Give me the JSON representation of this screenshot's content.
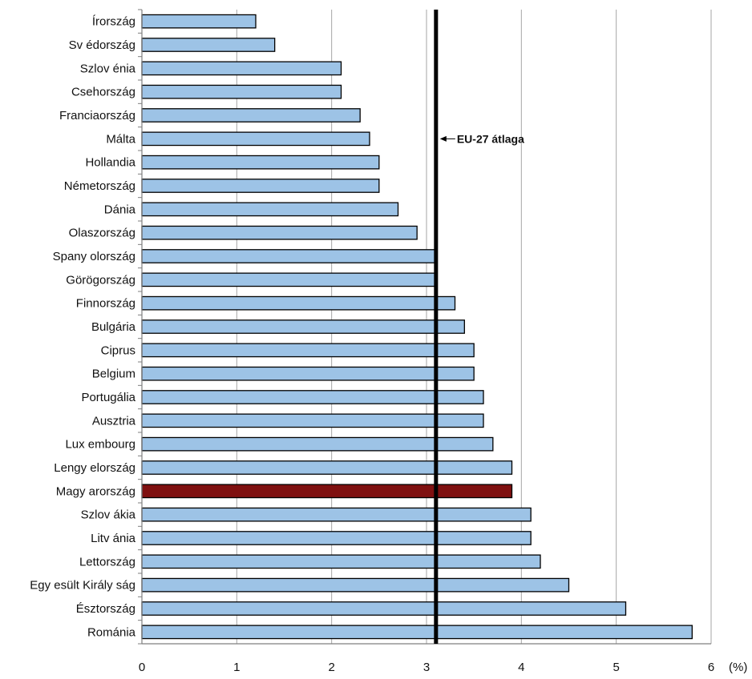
{
  "chart_data": {
    "type": "bar",
    "orientation": "horizontal",
    "categories": [
      "Írország",
      "Sv édország",
      "Szlov énia",
      "Csehország",
      "Franciaország",
      "Málta",
      "Hollandia",
      "Németország",
      "Dánia",
      "Olaszország",
      "Spany olország",
      "Görögország",
      "Finnország",
      "Bulgária",
      "Ciprus",
      "Belgium",
      "Portugália",
      "Ausztria",
      "Lux embourg",
      "Lengy elország",
      "Magy arország",
      "Szlov ákia",
      "Litv ánia",
      "Lettország",
      "Egy esült Király ság",
      "Észtország",
      "Románia"
    ],
    "values": [
      1.2,
      1.4,
      2.1,
      2.1,
      2.3,
      2.4,
      2.5,
      2.5,
      2.7,
      2.9,
      3.1,
      3.1,
      3.3,
      3.4,
      3.5,
      3.5,
      3.6,
      3.6,
      3.7,
      3.9,
      3.9,
      4.1,
      4.1,
      4.2,
      4.5,
      5.1,
      5.8
    ],
    "highlight_category": "Magy arország",
    "xlim": [
      0,
      6
    ],
    "xticks": [
      "0",
      "1",
      "2",
      "3",
      "4",
      "5",
      "6"
    ],
    "x_unit": "(%)",
    "reference_line": {
      "value": 3.1,
      "label": "EU-27 átlaga"
    },
    "grid": true,
    "colors": {
      "bar": "#9dc3e6",
      "highlight": "#7f1010",
      "bar_outline": "#000000",
      "grid": "#a6a6a6",
      "reference_line": "#000000"
    }
  }
}
